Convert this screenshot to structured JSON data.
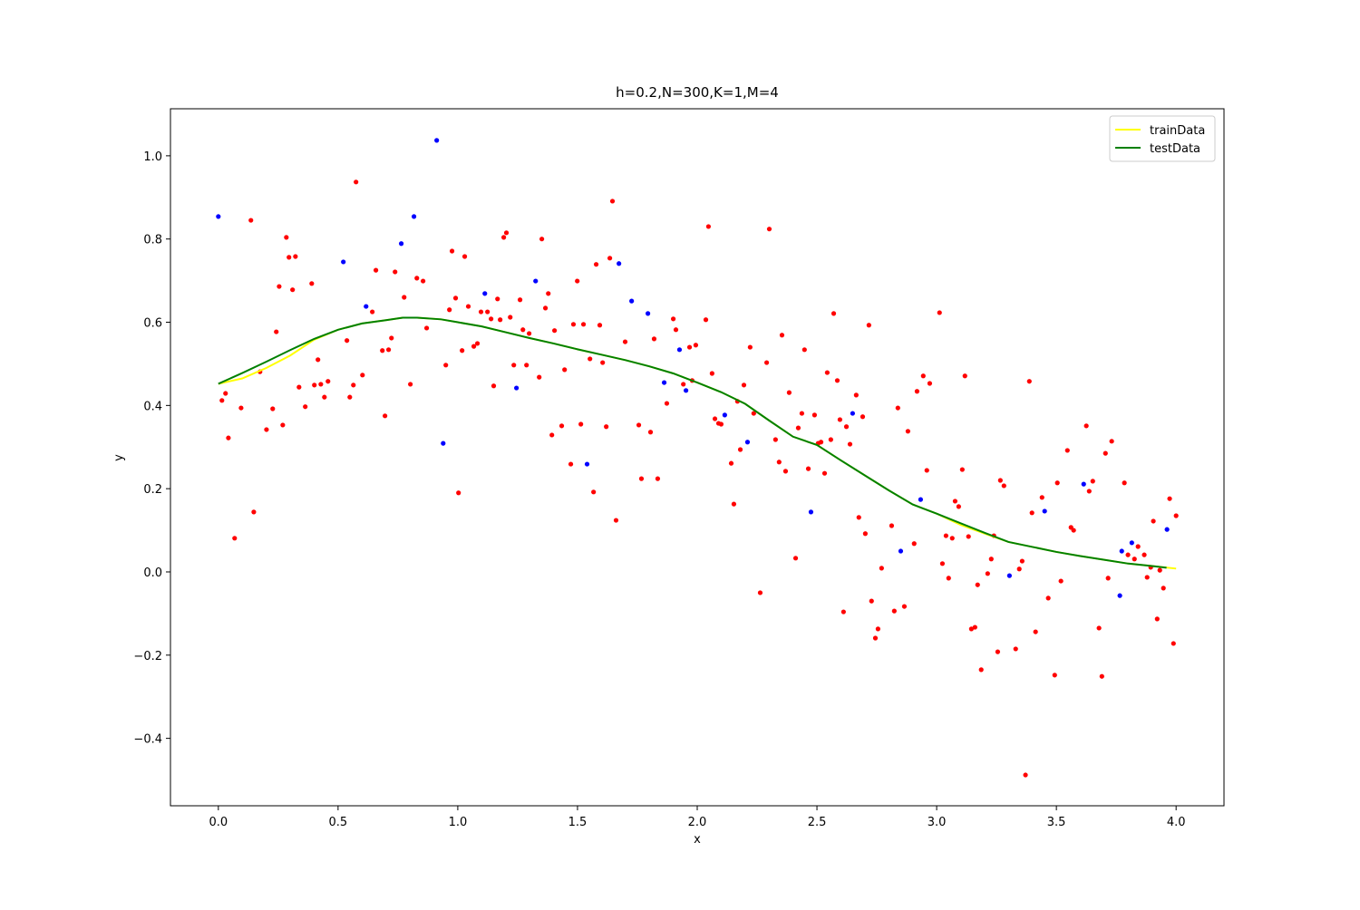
{
  "chart_data": {
    "type": "scatter-line",
    "title": "h=0.2,N=300,K=1,M=4",
    "xlabel": "x",
    "ylabel": "y",
    "xlim": [
      -0.2,
      4.2
    ],
    "ylim": [
      -0.562,
      1.113
    ],
    "xticks": [
      {
        "value": 0,
        "label": "0.0"
      },
      {
        "value": 0.5,
        "label": "0.5"
      },
      {
        "value": 1,
        "label": "1.0"
      },
      {
        "value": 1.5,
        "label": "1.5"
      },
      {
        "value": 2,
        "label": "2.0"
      },
      {
        "value": 2.5,
        "label": "2.5"
      },
      {
        "value": 3,
        "label": "3.0"
      },
      {
        "value": 3.5,
        "label": "3.5"
      },
      {
        "value": 4,
        "label": "4.0"
      }
    ],
    "yticks": [
      {
        "value": -0.4,
        "label": "−0.4"
      },
      {
        "value": -0.2,
        "label": "−0.2"
      },
      {
        "value": 0,
        "label": "0.0"
      },
      {
        "value": 0.2,
        "label": "0.2"
      },
      {
        "value": 0.4,
        "label": "0.4"
      },
      {
        "value": 0.6,
        "label": "0.6"
      },
      {
        "value": 0.8,
        "label": "0.8"
      },
      {
        "value": 1,
        "label": "1.0"
      }
    ],
    "legend": "upper right",
    "series": [
      {
        "name": "trainData",
        "type": "line",
        "color": "#ffff00",
        "x": [
          0,
          0.1,
          0.2,
          0.3,
          0.4,
          0.5,
          0.6,
          0.7,
          0.77,
          0.83,
          0.93,
          1.0,
          1.1,
          1.2,
          1.3,
          1.4,
          1.5,
          1.6,
          1.7,
          1.8,
          1.9,
          2.0,
          2.1,
          2.2,
          2.3,
          2.4,
          2.5,
          2.6,
          2.7,
          2.8,
          2.9,
          3.0,
          3.1,
          3.2,
          3.3,
          3.4,
          3.5,
          3.6,
          3.7,
          3.8,
          3.9,
          4.0
        ],
        "values": [
          0.452,
          0.465,
          0.49,
          0.52,
          0.558,
          0.582,
          0.597,
          0.605,
          0.611,
          0.611,
          0.607,
          0.6,
          0.59,
          0.576,
          0.562,
          0.549,
          0.535,
          0.522,
          0.509,
          0.494,
          0.477,
          0.455,
          0.432,
          0.404,
          0.364,
          0.325,
          0.305,
          0.268,
          0.232,
          0.196,
          0.162,
          0.14,
          0.113,
          0.092,
          0.072,
          0.06,
          0.048,
          0.038,
          0.029,
          0.02,
          0.014,
          0.008
        ]
      },
      {
        "name": "testData",
        "type": "line",
        "color": "#008000",
        "x": [
          0,
          0.1,
          0.2,
          0.3,
          0.4,
          0.5,
          0.6,
          0.7,
          0.77,
          0.83,
          0.93,
          1.0,
          1.1,
          1.2,
          1.3,
          1.4,
          1.5,
          1.6,
          1.7,
          1.8,
          1.9,
          2.0,
          2.1,
          2.2,
          2.3,
          2.4,
          2.5,
          2.6,
          2.7,
          2.8,
          2.9,
          3.0,
          3.1,
          3.2,
          3.3,
          3.4,
          3.5,
          3.6,
          3.7,
          3.8,
          3.9,
          3.96
        ],
        "values": [
          0.452,
          0.478,
          0.505,
          0.533,
          0.56,
          0.582,
          0.597,
          0.605,
          0.611,
          0.611,
          0.607,
          0.6,
          0.59,
          0.576,
          0.562,
          0.549,
          0.535,
          0.522,
          0.509,
          0.494,
          0.477,
          0.455,
          0.432,
          0.404,
          0.364,
          0.325,
          0.305,
          0.268,
          0.232,
          0.196,
          0.162,
          0.14,
          0.117,
          0.094,
          0.072,
          0.06,
          0.048,
          0.038,
          0.029,
          0.02,
          0.014,
          0.01
        ]
      },
      {
        "type": "scatter",
        "color": "#ff0000",
        "x": [
          0.015,
          0.03,
          0.042,
          0.068,
          0.095,
          0.136,
          0.148,
          0.174,
          0.201,
          0.227,
          0.242,
          0.254,
          0.269,
          0.284,
          0.295,
          0.31,
          0.322,
          0.337,
          0.363,
          0.39,
          0.401,
          0.416,
          0.428,
          0.443,
          0.458,
          0.537,
          0.549,
          0.564,
          0.575,
          0.602,
          0.643,
          0.658,
          0.685,
          0.696,
          0.711,
          0.723,
          0.738,
          0.776,
          0.802,
          0.829,
          0.855,
          0.87,
          0.95,
          0.965,
          0.976,
          0.991,
          1.003,
          1.018,
          1.029,
          1.044,
          1.067,
          1.082,
          1.097,
          1.124,
          1.139,
          1.15,
          1.166,
          1.177,
          1.192,
          1.203,
          1.219,
          1.234,
          1.26,
          1.272,
          1.287,
          1.298,
          1.34,
          1.351,
          1.366,
          1.378,
          1.393,
          1.404,
          1.434,
          1.446,
          1.472,
          1.483,
          1.499,
          1.514,
          1.525,
          1.552,
          1.567,
          1.578,
          1.593,
          1.605,
          1.62,
          1.635,
          1.646,
          1.661,
          1.699,
          1.756,
          1.767,
          1.805,
          1.82,
          1.835,
          1.873,
          1.9,
          1.911,
          1.942,
          1.968,
          1.979,
          1.994,
          2.036,
          2.047,
          2.062,
          2.074,
          2.089,
          2.1,
          2.142,
          2.153,
          2.168,
          2.18,
          2.195,
          2.221,
          2.236,
          2.263,
          2.29,
          2.301,
          2.327,
          2.342,
          2.354,
          2.369,
          2.384,
          2.411,
          2.422,
          2.437,
          2.448,
          2.464,
          2.49,
          2.505,
          2.517,
          2.532,
          2.543,
          2.558,
          2.57,
          2.585,
          2.596,
          2.611,
          2.623,
          2.638,
          2.664,
          2.675,
          2.691,
          2.702,
          2.717,
          2.728,
          2.744,
          2.755,
          2.77,
          2.812,
          2.823,
          2.838,
          2.865,
          2.88,
          2.906,
          2.918,
          2.944,
          2.959,
          2.971,
          3.012,
          3.024,
          3.039,
          3.05,
          3.065,
          3.077,
          3.092,
          3.107,
          3.118,
          3.133,
          3.145,
          3.16,
          3.171,
          3.186,
          3.213,
          3.228,
          3.239,
          3.255,
          3.266,
          3.281,
          3.33,
          3.345,
          3.357,
          3.371,
          3.387,
          3.398,
          3.413,
          3.44,
          3.466,
          3.493,
          3.504,
          3.519,
          3.546,
          3.561,
          3.572,
          3.625,
          3.637,
          3.652,
          3.678,
          3.69,
          3.705,
          3.716,
          3.731,
          3.784,
          3.799,
          3.826,
          3.841,
          3.867,
          3.879,
          3.894,
          3.905,
          3.921,
          3.932,
          3.947,
          3.973,
          3.989,
          4.0
        ],
        "values": [
          0.412,
          0.429,
          0.322,
          0.081,
          0.394,
          0.845,
          0.144,
          0.481,
          0.342,
          0.392,
          0.577,
          0.686,
          0.353,
          0.804,
          0.756,
          0.678,
          0.758,
          0.444,
          0.397,
          0.693,
          0.449,
          0.51,
          0.451,
          0.42,
          0.458,
          0.556,
          0.42,
          0.449,
          0.937,
          0.473,
          0.625,
          0.725,
          0.532,
          0.375,
          0.534,
          0.562,
          0.721,
          0.66,
          0.451,
          0.706,
          0.699,
          0.586,
          0.497,
          0.63,
          0.771,
          0.658,
          0.19,
          0.532,
          0.758,
          0.638,
          0.542,
          0.549,
          0.625,
          0.625,
          0.608,
          0.447,
          0.656,
          0.606,
          0.804,
          0.815,
          0.612,
          0.497,
          0.654,
          0.582,
          0.497,
          0.573,
          0.468,
          0.8,
          0.634,
          0.669,
          0.329,
          0.58,
          0.351,
          0.486,
          0.259,
          0.595,
          0.699,
          0.355,
          0.595,
          0.512,
          0.192,
          0.739,
          0.593,
          0.503,
          0.349,
          0.754,
          0.891,
          0.124,
          0.553,
          0.353,
          0.224,
          0.336,
          0.56,
          0.224,
          0.405,
          0.608,
          0.582,
          0.451,
          0.54,
          0.46,
          0.545,
          0.606,
          0.83,
          0.477,
          0.368,
          0.357,
          0.355,
          0.261,
          0.163,
          0.41,
          0.294,
          0.449,
          0.54,
          0.381,
          -0.05,
          0.503,
          0.824,
          0.318,
          0.264,
          0.569,
          0.242,
          0.431,
          0.033,
          0.346,
          0.381,
          0.534,
          0.248,
          0.377,
          0.309,
          0.312,
          0.237,
          0.479,
          0.318,
          0.621,
          0.46,
          0.366,
          -0.096,
          0.349,
          0.307,
          0.425,
          0.131,
          0.373,
          0.092,
          0.593,
          -0.07,
          -0.159,
          -0.137,
          0.009,
          0.111,
          -0.094,
          0.394,
          -0.083,
          0.338,
          0.068,
          0.434,
          0.471,
          0.244,
          0.453,
          0.623,
          0.02,
          0.087,
          -0.015,
          0.081,
          0.17,
          0.157,
          0.246,
          0.471,
          0.085,
          -0.137,
          -0.133,
          -0.031,
          -0.235,
          -0.004,
          0.031,
          0.087,
          -0.192,
          0.22,
          0.207,
          -0.185,
          0.007,
          0.026,
          -0.488,
          0.458,
          0.142,
          -0.144,
          0.179,
          -0.063,
          -0.248,
          0.214,
          -0.022,
          0.292,
          0.107,
          0.1,
          0.351,
          0.194,
          0.218,
          -0.135,
          -0.251,
          0.285,
          -0.015,
          0.314,
          0.214,
          0.041,
          0.031,
          0.061,
          0.041,
          -0.013,
          0.011,
          0.122,
          -0.113,
          0.004,
          -0.039,
          0.176,
          -0.172,
          0.135
        ]
      },
      {
        "type": "scatter",
        "color": "#0000ff",
        "x": [
          0.0,
          0.522,
          0.617,
          0.764,
          0.817,
          0.912,
          0.939,
          1.113,
          1.245,
          1.325,
          1.54,
          1.673,
          1.726,
          1.794,
          1.862,
          1.926,
          1.953,
          2.115,
          2.21,
          2.475,
          2.649,
          2.85,
          2.933,
          3.304,
          3.451,
          3.614,
          3.773,
          3.815,
          3.765,
          3.962
        ],
        "values": [
          0.854,
          0.745,
          0.638,
          0.789,
          0.854,
          1.037,
          0.309,
          0.669,
          0.442,
          0.699,
          0.259,
          0.741,
          0.651,
          0.621,
          0.455,
          0.534,
          0.436,
          0.377,
          0.312,
          0.144,
          0.381,
          0.05,
          0.174,
          -0.009,
          0.146,
          0.211,
          0.05,
          0.07,
          -0.057,
          0.102
        ]
      }
    ]
  }
}
